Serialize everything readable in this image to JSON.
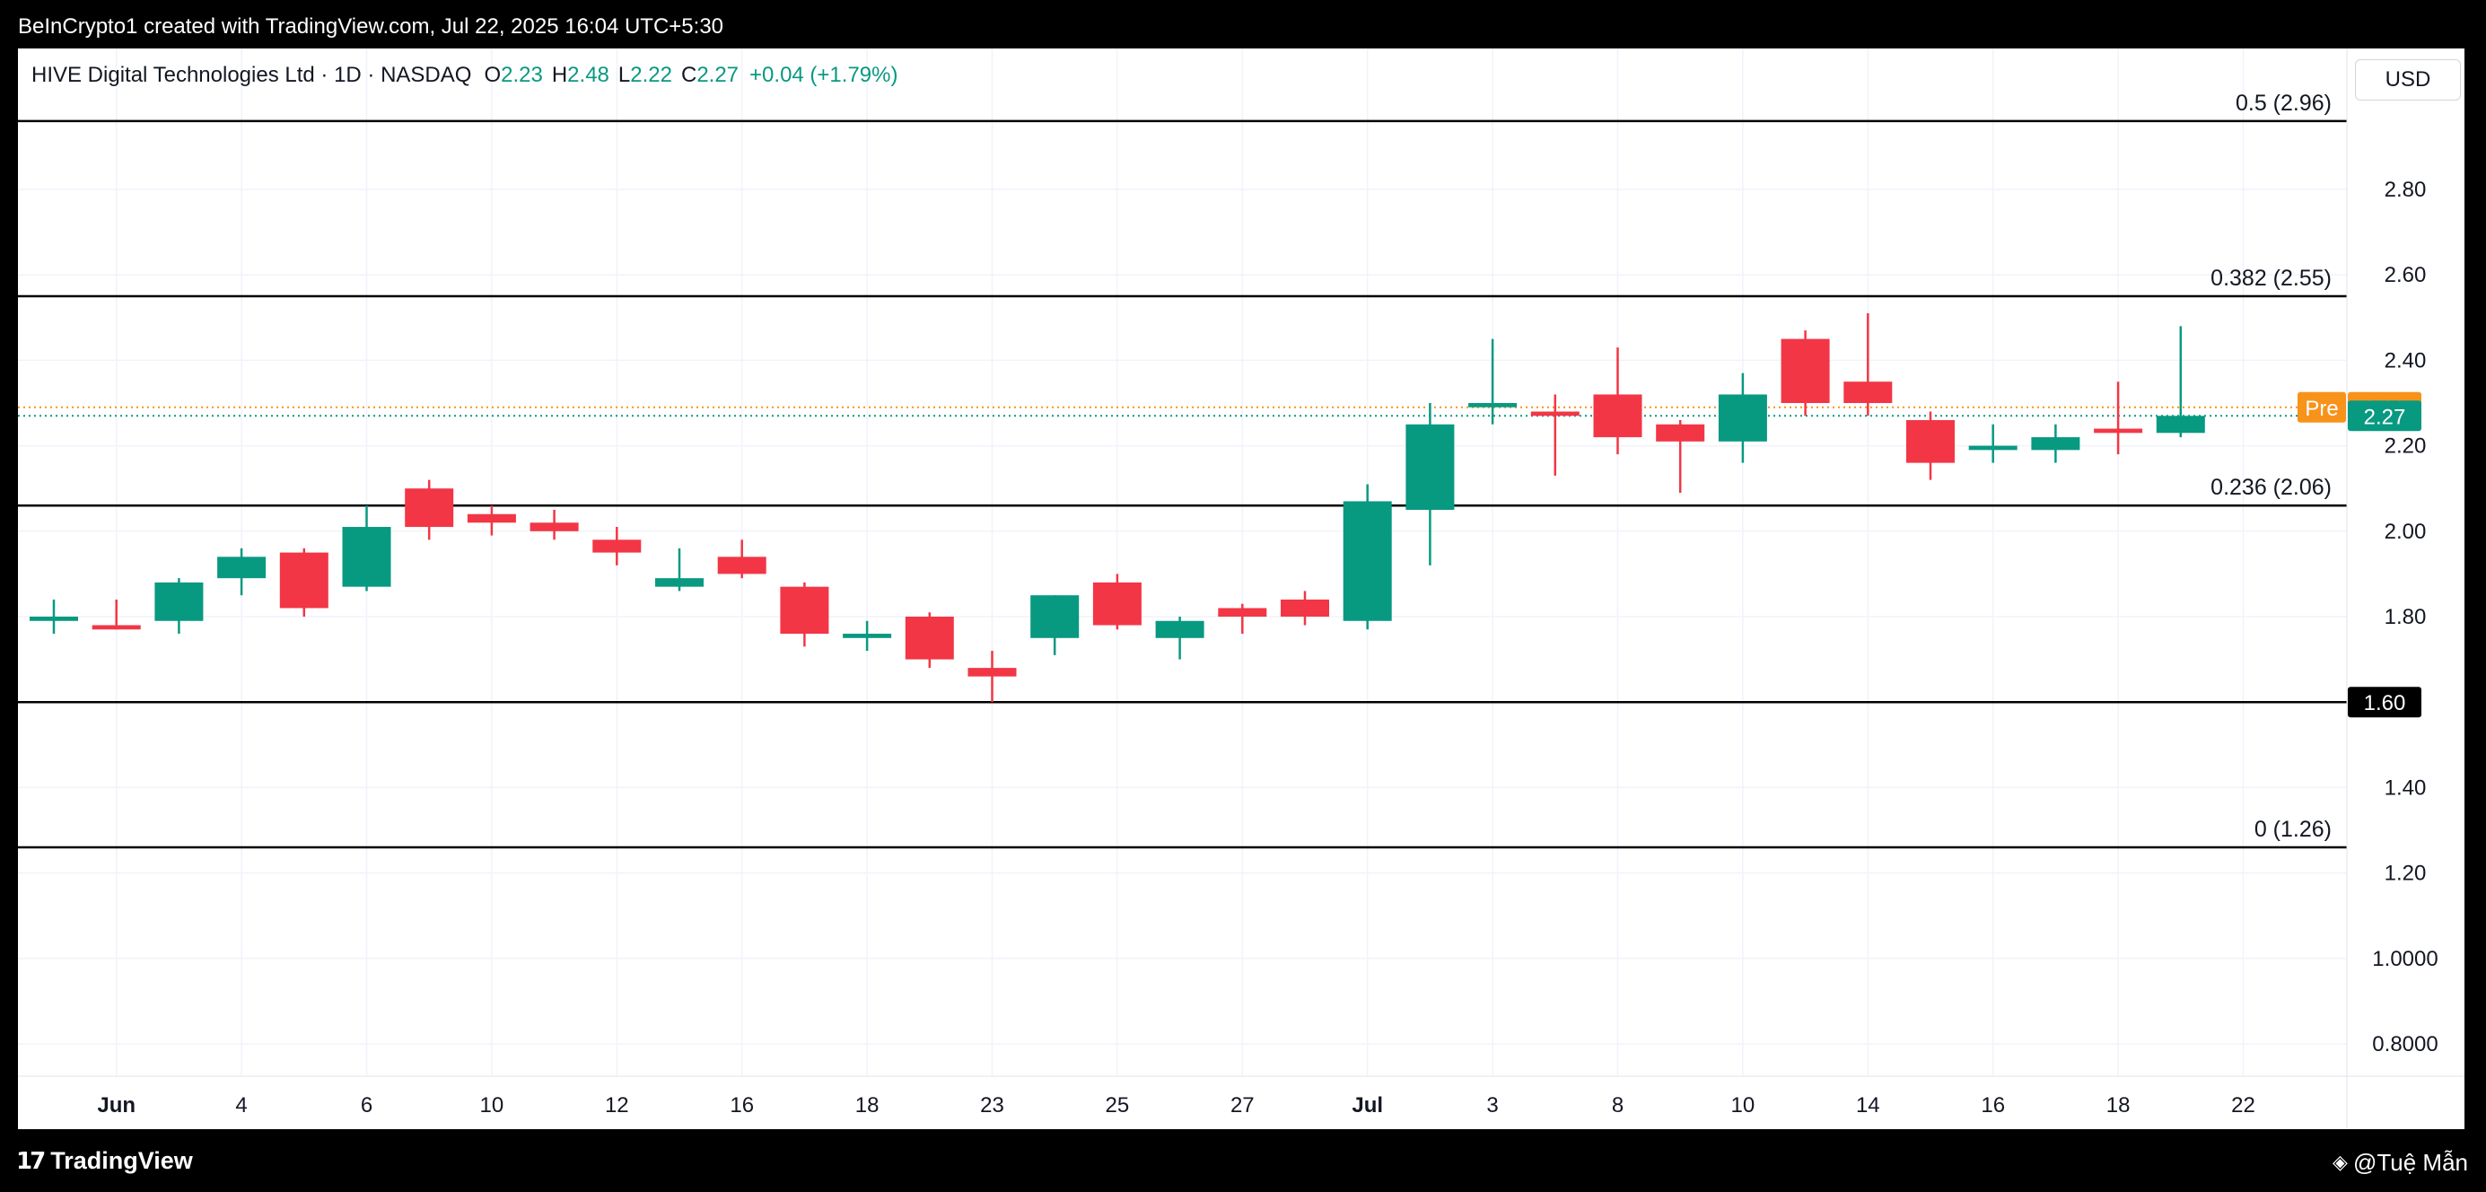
{
  "header": {
    "attribution": "BeInCrypto1 created with TradingView.com, Jul 22, 2025 16:04 UTC+5:30"
  },
  "legend": {
    "symbol": "HIVE Digital Technologies Ltd · 1D · NASDAQ",
    "open_label": "O",
    "open": "2.23",
    "high_label": "H",
    "high": "2.48",
    "low_label": "L",
    "low": "2.22",
    "close_label": "C",
    "close": "2.27",
    "change": "+0.04 (+1.79%)"
  },
  "currency_button": "USD",
  "footer": {
    "brand": "TradingView",
    "credit": "@Tuệ Mẫn"
  },
  "colors": {
    "up": "#089981",
    "down": "#f23645",
    "pre_market": "#f7931a",
    "fib_line": "#000000",
    "grid": "#f0f3fa"
  },
  "chart_data": {
    "type": "candlestick",
    "ylim": [
      0.7,
      3.0
    ],
    "y_ticks": [
      {
        "value": 0.8,
        "label": "0.8000"
      },
      {
        "value": 1.0,
        "label": "1.0000"
      },
      {
        "value": 1.2,
        "label": "1.20"
      },
      {
        "value": 1.4,
        "label": "1.40"
      },
      {
        "value": 1.8,
        "label": "1.80"
      },
      {
        "value": 2.0,
        "label": "2.00"
      },
      {
        "value": 2.2,
        "label": "2.20"
      },
      {
        "value": 2.4,
        "label": "2.40"
      },
      {
        "value": 2.6,
        "label": "2.60"
      },
      {
        "value": 2.8,
        "label": "2.80"
      }
    ],
    "x_ticks": [
      {
        "index": 1,
        "label": "Jun",
        "bold": true
      },
      {
        "index": 3,
        "label": "4"
      },
      {
        "index": 5,
        "label": "6"
      },
      {
        "index": 7,
        "label": "10"
      },
      {
        "index": 9,
        "label": "12"
      },
      {
        "index": 11,
        "label": "16"
      },
      {
        "index": 13,
        "label": "18"
      },
      {
        "index": 15,
        "label": "23"
      },
      {
        "index": 17,
        "label": "25"
      },
      {
        "index": 19,
        "label": "27"
      },
      {
        "index": 21,
        "label": "Jul",
        "bold": true
      },
      {
        "index": 23,
        "label": "3"
      },
      {
        "index": 25,
        "label": "8"
      },
      {
        "index": 27,
        "label": "10"
      },
      {
        "index": 29,
        "label": "14"
      },
      {
        "index": 31,
        "label": "16"
      },
      {
        "index": 33,
        "label": "18"
      },
      {
        "index": 35,
        "label": "22"
      }
    ],
    "candles": [
      {
        "o": 1.79,
        "h": 1.84,
        "l": 1.76,
        "c": 1.8
      },
      {
        "o": 1.78,
        "h": 1.84,
        "l": 1.77,
        "c": 1.77
      },
      {
        "o": 1.79,
        "h": 1.89,
        "l": 1.76,
        "c": 1.88
      },
      {
        "o": 1.89,
        "h": 1.96,
        "l": 1.85,
        "c": 1.94
      },
      {
        "o": 1.95,
        "h": 1.96,
        "l": 1.8,
        "c": 1.82
      },
      {
        "o": 1.87,
        "h": 2.06,
        "l": 1.86,
        "c": 2.01
      },
      {
        "o": 2.1,
        "h": 2.12,
        "l": 1.98,
        "c": 2.01
      },
      {
        "o": 2.04,
        "h": 2.06,
        "l": 1.99,
        "c": 2.02
      },
      {
        "o": 2.02,
        "h": 2.05,
        "l": 1.98,
        "c": 2.0
      },
      {
        "o": 1.98,
        "h": 2.01,
        "l": 1.92,
        "c": 1.95
      },
      {
        "o": 1.87,
        "h": 1.96,
        "l": 1.86,
        "c": 1.89
      },
      {
        "o": 1.94,
        "h": 1.98,
        "l": 1.89,
        "c": 1.9
      },
      {
        "o": 1.87,
        "h": 1.88,
        "l": 1.73,
        "c": 1.76
      },
      {
        "o": 1.75,
        "h": 1.79,
        "l": 1.72,
        "c": 1.76
      },
      {
        "o": 1.8,
        "h": 1.81,
        "l": 1.68,
        "c": 1.7
      },
      {
        "o": 1.68,
        "h": 1.72,
        "l": 1.6,
        "c": 1.66
      },
      {
        "o": 1.75,
        "h": 1.85,
        "l": 1.71,
        "c": 1.85
      },
      {
        "o": 1.88,
        "h": 1.9,
        "l": 1.77,
        "c": 1.78
      },
      {
        "o": 1.75,
        "h": 1.8,
        "l": 1.7,
        "c": 1.79
      },
      {
        "o": 1.82,
        "h": 1.83,
        "l": 1.76,
        "c": 1.8
      },
      {
        "o": 1.84,
        "h": 1.86,
        "l": 1.78,
        "c": 1.8
      },
      {
        "o": 1.79,
        "h": 2.11,
        "l": 1.77,
        "c": 2.07
      },
      {
        "o": 2.05,
        "h": 2.3,
        "l": 1.92,
        "c": 2.25
      },
      {
        "o": 2.29,
        "h": 2.45,
        "l": 2.25,
        "c": 2.3
      },
      {
        "o": 2.28,
        "h": 2.32,
        "l": 2.13,
        "c": 2.27
      },
      {
        "o": 2.32,
        "h": 2.43,
        "l": 2.18,
        "c": 2.22
      },
      {
        "o": 2.25,
        "h": 2.26,
        "l": 2.09,
        "c": 2.21
      },
      {
        "o": 2.21,
        "h": 2.37,
        "l": 2.16,
        "c": 2.32
      },
      {
        "o": 2.45,
        "h": 2.47,
        "l": 2.27,
        "c": 2.3
      },
      {
        "o": 2.35,
        "h": 2.51,
        "l": 2.27,
        "c": 2.3
      },
      {
        "o": 2.26,
        "h": 2.28,
        "l": 2.12,
        "c": 2.16
      },
      {
        "o": 2.19,
        "h": 2.25,
        "l": 2.16,
        "c": 2.2
      },
      {
        "o": 2.19,
        "h": 2.25,
        "l": 2.16,
        "c": 2.22
      },
      {
        "o": 2.24,
        "h": 2.35,
        "l": 2.18,
        "c": 2.23
      },
      {
        "o": 2.23,
        "h": 2.48,
        "l": 2.22,
        "c": 2.27
      }
    ],
    "horizontal_lines": [
      {
        "value": 2.96,
        "label": "0.5 (2.96)"
      },
      {
        "value": 2.55,
        "label": "0.382 (2.55)"
      },
      {
        "value": 2.06,
        "label": "0.236 (2.06)"
      },
      {
        "value": 1.6,
        "label": ""
      },
      {
        "value": 1.26,
        "label": "0 (1.26)"
      }
    ],
    "price_tags": [
      {
        "value": 2.29,
        "prefix": "Pre",
        "label": "2.29",
        "color": "#f7931a",
        "dotted": true
      },
      {
        "value": 2.27,
        "prefix": "",
        "label": "2.27",
        "color": "#089981",
        "dotted": true
      },
      {
        "value": 1.6,
        "prefix": "",
        "label": "1.60",
        "color": "#000000",
        "dotted": false
      }
    ]
  }
}
